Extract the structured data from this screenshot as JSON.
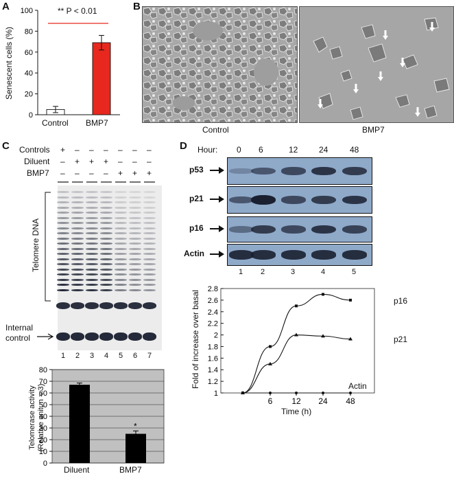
{
  "panel_a": {
    "label": "A",
    "ylabel": "Senescent cells (%)",
    "significance": "** P < 0.01",
    "yticks": [
      "0",
      "20",
      "40",
      "60",
      "80",
      "100"
    ],
    "color_bmp7": "#e8281e",
    "color_control": "#ffffff"
  },
  "panel_b": {
    "label": "B",
    "captions": [
      "Control",
      "BMP7"
    ]
  },
  "panel_c": {
    "label": "C",
    "row_labels": [
      "Controls",
      "Diluent",
      "BMP7"
    ],
    "row_signs": [
      [
        "+",
        "–",
        "–",
        "–",
        "–",
        "–",
        "–"
      ],
      [
        "–",
        "+",
        "+",
        "+",
        "–",
        "–",
        "–"
      ],
      [
        "–",
        "–",
        "–",
        "–",
        "+",
        "+",
        "+"
      ]
    ],
    "telomere_label": "Telomere DNA",
    "internal_control_label": [
      "Internal",
      "control"
    ],
    "lane_numbers": [
      "1",
      "2",
      "3",
      "4",
      "5",
      "6",
      "7"
    ],
    "lane_intensity": [
      1.0,
      0.95,
      0.95,
      0.9,
      0.55,
      0.5,
      0.45
    ],
    "bar_ylabel": [
      "Telomerase activity",
      "(Relative unit, n = 3)"
    ],
    "bar_yticks": [
      "0",
      "10",
      "20",
      "30",
      "40",
      "50",
      "60",
      "70",
      "80"
    ],
    "significance_mark": "*",
    "plot_bg": "#c0c0c0"
  },
  "panel_d": {
    "label": "D",
    "hour_label": "Hour:",
    "hours": [
      "0",
      "6",
      "12",
      "24",
      "48"
    ],
    "blots": [
      "p53",
      "p21",
      "p16",
      "Actin"
    ],
    "band_strength": {
      "p53": [
        0.25,
        0.6,
        0.7,
        0.85,
        0.8
      ],
      "p21": [
        0.6,
        1.0,
        0.7,
        0.8,
        0.85
      ],
      "p16": [
        0.45,
        0.8,
        0.7,
        0.85,
        0.75
      ],
      "Actin": [
        0.9,
        0.9,
        0.9,
        0.9,
        0.9
      ]
    },
    "lane_numbers": [
      "1",
      "2",
      "3",
      "4",
      "5"
    ],
    "blot_color": "#8fa9c9",
    "line_ylabel": "Fold of increase over basal",
    "line_xlabel": "Time (h)",
    "line_yticks": [
      "1",
      "1.2",
      "1.4",
      "1.6",
      "1.8",
      "2",
      "2.2",
      "2.4",
      "2.6",
      "2.8"
    ],
    "line_xticks": [
      "6",
      "12",
      "24",
      "48"
    ]
  },
  "chart_data": [
    {
      "type": "bar",
      "categories": [
        "Control",
        "BMP7"
      ],
      "values": [
        5,
        69
      ],
      "errors": [
        3,
        7
      ],
      "ylabel": "Senescent cells (%)",
      "ylim": [
        0,
        100
      ],
      "annotation": "** P < 0.01"
    },
    {
      "type": "bar",
      "categories": [
        "Diluent",
        "BMP7"
      ],
      "values": [
        67,
        25
      ],
      "errors": [
        1.5,
        2.5
      ],
      "ylabel": "Telomerase activity (Relative unit, n = 3)",
      "ylim": [
        0,
        80
      ],
      "annotation": "*"
    },
    {
      "type": "line",
      "x": [
        0,
        6,
        12,
        24,
        48
      ],
      "series": [
        {
          "name": "p16",
          "values": [
            1,
            1.8,
            2.5,
            2.7,
            2.6
          ]
        },
        {
          "name": "p21",
          "values": [
            1,
            1.5,
            2.0,
            1.98,
            1.93
          ]
        },
        {
          "name": "Actin",
          "values": [
            1,
            1,
            1,
            1,
            1
          ]
        }
      ],
      "xlabel": "Time (h)",
      "ylabel": "Fold of increase over basal",
      "ylim": [
        1,
        2.8
      ]
    }
  ]
}
